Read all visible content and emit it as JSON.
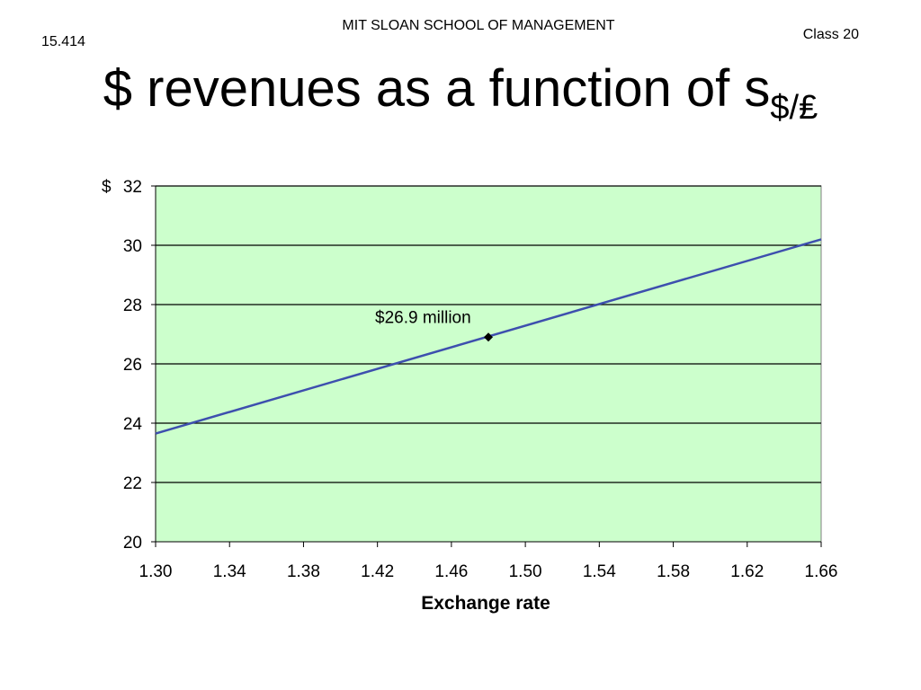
{
  "header": {
    "course": "15.414",
    "school": "MIT SLOAN SCHOOL OF MANAGEMENT",
    "class": "Class 20"
  },
  "slide": {
    "title": "$ revenues as a function of s",
    "title_subscript": "$/₤"
  },
  "chart_data": {
    "type": "line",
    "xlabel": "Exchange rate",
    "ylabel": "",
    "y_unit_prefix": "$",
    "xlim": [
      1.3,
      1.66
    ],
    "ylim": [
      20,
      32
    ],
    "x_ticks": [
      "1.30",
      "1.34",
      "1.38",
      "1.42",
      "1.46",
      "1.50",
      "1.54",
      "1.58",
      "1.62",
      "1.66"
    ],
    "y_ticks": [
      "20",
      "22",
      "24",
      "26",
      "28",
      "30",
      "32"
    ],
    "grid": "horizontal",
    "series": [
      {
        "x": [
          1.3,
          1.66
        ],
        "y": [
          23.65,
          30.2
        ]
      }
    ],
    "annotations": [
      {
        "x": 1.48,
        "y": 26.9,
        "text": "$26.9 million"
      }
    ],
    "colors": {
      "plot_background": "#ccffcc",
      "line": "#3d4fae",
      "marker": "#000000"
    }
  }
}
